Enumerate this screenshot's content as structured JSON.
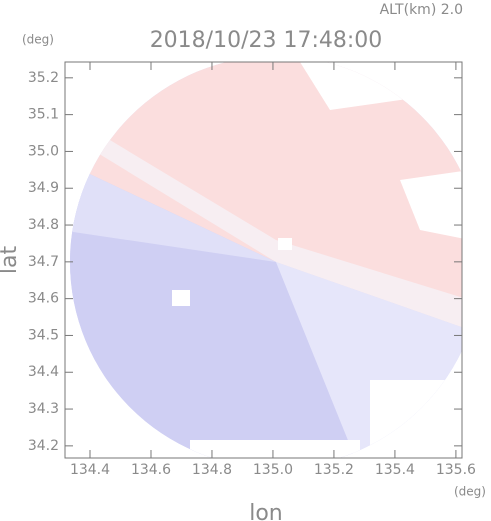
{
  "chart_data": {
    "type": "radar-field",
    "title": "2018/10/23 17:48:00",
    "altitude_label": "ALT(km) 2.0",
    "xlabel": "lon",
    "ylabel": "lat",
    "xunit": "(deg)",
    "yunit": "(deg)",
    "xlim": [
      134.318,
      135.62
    ],
    "ylim": [
      34.167,
      35.243
    ],
    "xticks": [
      134.4,
      134.6,
      134.8,
      {
        "value": 135,
        "label": "135.0"
      },
      135.2,
      135.4,
      135.6
    ],
    "yticks": [
      34.2,
      34.3,
      34.4,
      34.5,
      34.6,
      34.7,
      34.8,
      34.9,
      {
        "value": 35,
        "label": "35.0"
      },
      35.1,
      35.2
    ]
  }
}
